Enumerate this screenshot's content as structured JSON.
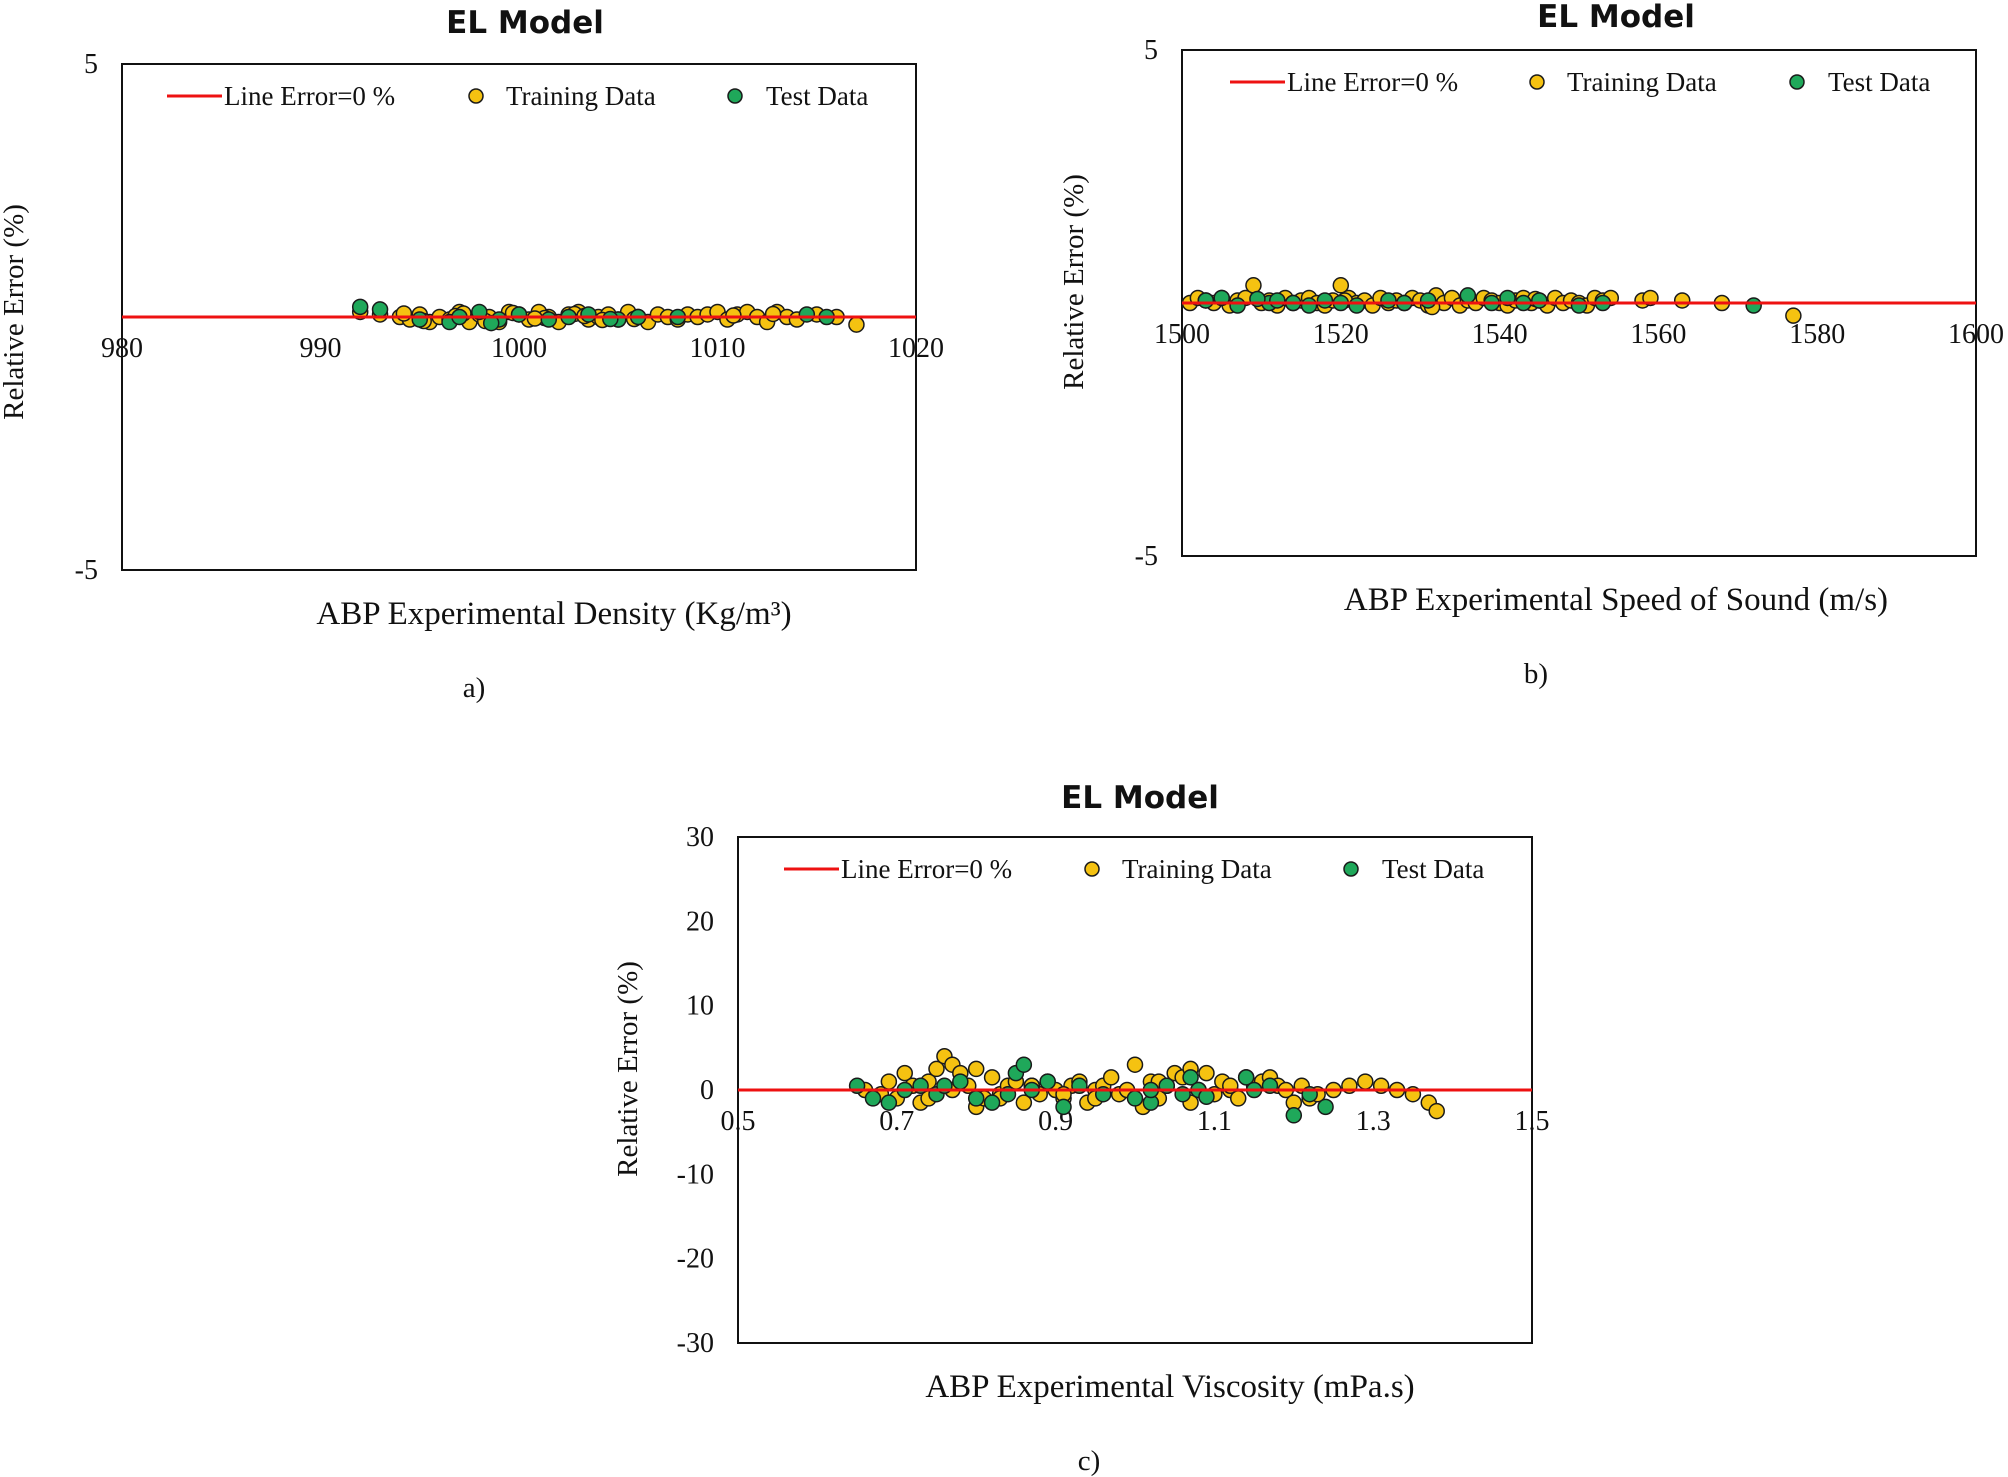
{
  "colors": {
    "zero_line": "#ee1111",
    "training": "#f5c211",
    "test": "#1fa85a",
    "marker_edge": "#1a1a1a"
  },
  "legend": {
    "line": "Line Error=0 %",
    "training": "Training Data",
    "test": "Test Data"
  },
  "chart_data": [
    {
      "type": "scatter",
      "title": "EL Model",
      "caption": "a)",
      "xlabel": "ABP Experimental Density (Kg/m³)",
      "ylabel": "Relative Error (%)",
      "xlim": [
        980,
        1020
      ],
      "ylim": [
        -5,
        5
      ],
      "xticks": [
        980,
        990,
        1000,
        1010,
        1020
      ],
      "yticks": [
        5,
        0,
        -5
      ],
      "ytick_labels": [
        "5",
        "",
        "-5"
      ],
      "series": [
        {
          "name": "Training Data",
          "x": [
            992.0,
            993.0,
            994.0,
            994.5,
            995.0,
            995.5,
            996.0,
            996.5,
            997.0,
            997.5,
            998.0,
            998.5,
            999.0,
            999.5,
            1000.0,
            1000.5,
            1001.0,
            1001.5,
            1002.0,
            1002.5,
            1003.0,
            1003.5,
            1004.0,
            1004.5,
            1005.0,
            1005.5,
            1006.0,
            1006.5,
            1007.0,
            1007.5,
            1008.0,
            1008.5,
            1009.0,
            1009.5,
            1010.0,
            1010.5,
            1011.0,
            1011.5,
            1012.0,
            1012.5,
            1013.0,
            1013.5,
            1014.0,
            1015.0,
            1016.0,
            1017.0,
            996.8,
            998.3,
            999.7,
            1001.3,
            1002.8,
            1004.2,
            995.2,
            997.2,
            1000.8,
            1003.3,
            1005.8,
            1010.8,
            1012.8,
            994.2
          ],
          "y": [
            0.1,
            0.05,
            0.0,
            -0.05,
            0.05,
            -0.1,
            0.0,
            -0.05,
            0.1,
            -0.1,
            0.05,
            0.0,
            -0.1,
            0.1,
            0.05,
            -0.05,
            0.1,
            0.0,
            -0.1,
            0.05,
            0.1,
            -0.05,
            0.0,
            0.05,
            -0.05,
            0.1,
            0.0,
            -0.1,
            0.05,
            0.0,
            -0.05,
            0.05,
            0.0,
            0.05,
            0.1,
            -0.05,
            0.05,
            0.1,
            0.0,
            -0.1,
            0.1,
            0.0,
            -0.05,
            0.05,
            0.0,
            -0.15,
            0.02,
            -0.08,
            0.08,
            -0.02,
            0.06,
            -0.06,
            -0.08,
            0.07,
            -0.03,
            0.02,
            -0.04,
            0.03,
            0.06,
            0.07
          ]
        },
        {
          "name": "Test Data",
          "x": [
            992.0,
            993.0,
            995.0,
            996.5,
            997.0,
            998.0,
            999.0,
            1000.0,
            1001.5,
            1002.5,
            1003.5,
            1005.0,
            1006.0,
            1008.0,
            1014.5,
            1015.5,
            998.6,
            1004.6
          ],
          "y": [
            0.2,
            0.15,
            -0.05,
            -0.1,
            0.0,
            0.1,
            -0.05,
            0.05,
            -0.05,
            0.0,
            0.05,
            -0.05,
            0.0,
            0.0,
            0.05,
            0.0,
            -0.12,
            -0.04
          ]
        }
      ]
    },
    {
      "type": "scatter",
      "title": "EL Model",
      "caption": "b)",
      "xlabel": "ABP Experimental Speed of Sound (m/s)",
      "ylabel": "Relative Error (%)",
      "xlim": [
        1500,
        1600
      ],
      "ylim": [
        -5,
        5
      ],
      "xticks": [
        1500,
        1520,
        1540,
        1560,
        1580,
        1600
      ],
      "yticks": [
        5,
        0,
        -5
      ],
      "ytick_labels": [
        "5",
        "",
        "-5"
      ],
      "series": [
        {
          "name": "Training Data",
          "x": [
            1501,
            1502,
            1503,
            1504,
            1505,
            1506,
            1507,
            1508,
            1509,
            1510,
            1511,
            1512,
            1513,
            1514,
            1515,
            1516,
            1517,
            1518,
            1519,
            1520,
            1521,
            1522,
            1523,
            1524,
            1525,
            1526,
            1527,
            1528,
            1529,
            1530,
            1531,
            1532,
            1533,
            1534,
            1535,
            1536,
            1537,
            1538,
            1539,
            1540,
            1541,
            1542,
            1543,
            1544,
            1545,
            1546,
            1547,
            1548,
            1549,
            1550,
            1551,
            1552,
            1553,
            1554,
            1558,
            1559,
            1563,
            1568,
            1577,
            1520.5,
            1531.5,
            1544.5
          ],
          "y": [
            0.0,
            0.1,
            0.05,
            0.0,
            0.1,
            -0.05,
            0.05,
            0.1,
            0.35,
            0.0,
            0.05,
            -0.05,
            0.1,
            0.0,
            0.05,
            0.1,
            0.0,
            -0.05,
            0.05,
            0.35,
            0.1,
            0.0,
            0.05,
            -0.05,
            0.1,
            0.0,
            0.05,
            0.0,
            0.1,
            0.05,
            -0.05,
            0.15,
            0.0,
            0.1,
            -0.05,
            0.05,
            0.0,
            0.1,
            0.05,
            0.0,
            -0.05,
            0.05,
            0.1,
            0.0,
            0.05,
            -0.05,
            0.1,
            0.0,
            0.05,
            0.0,
            -0.05,
            0.1,
            0.05,
            0.1,
            0.05,
            0.1,
            0.05,
            0.0,
            -0.25,
            0.05,
            -0.08,
            0.08
          ]
        },
        {
          "name": "Test Data",
          "x": [
            1503,
            1505,
            1507,
            1511,
            1512,
            1514,
            1516,
            1518,
            1520,
            1522,
            1526,
            1528,
            1531,
            1536,
            1539,
            1541,
            1543,
            1545,
            1550,
            1553,
            1572,
            1509.5
          ],
          "y": [
            0.05,
            0.1,
            -0.05,
            0.0,
            0.05,
            0.0,
            -0.05,
            0.05,
            0.0,
            -0.05,
            0.05,
            0.0,
            0.05,
            0.15,
            0.0,
            0.1,
            0.0,
            0.05,
            -0.05,
            0.0,
            -0.05,
            0.08
          ]
        }
      ]
    },
    {
      "type": "scatter",
      "title": "EL Model",
      "caption": "c)",
      "xlabel": "ABP Experimental Viscosity (mPa.s)",
      "ylabel": "Relative Error (%)",
      "xlim": [
        0.5,
        1.5
      ],
      "ylim": [
        -30,
        30
      ],
      "xticks": [
        0.5,
        0.7,
        0.9,
        1.1,
        1.3,
        1.5
      ],
      "yticks": [
        30,
        20,
        10,
        0,
        -10,
        -20,
        -30
      ],
      "ytick_labels": [
        "30",
        "20",
        "10",
        "0",
        "-10",
        "-20",
        "-30"
      ],
      "series": [
        {
          "name": "Training Data",
          "x": [
            0.66,
            0.68,
            0.69,
            0.7,
            0.71,
            0.72,
            0.73,
            0.74,
            0.75,
            0.76,
            0.77,
            0.78,
            0.79,
            0.8,
            0.81,
            0.82,
            0.83,
            0.84,
            0.85,
            0.86,
            0.87,
            0.88,
            0.89,
            0.9,
            0.91,
            0.92,
            0.93,
            0.94,
            0.95,
            0.96,
            0.97,
            0.98,
            0.99,
            1.0,
            1.01,
            1.02,
            1.03,
            1.04,
            1.05,
            1.06,
            1.07,
            1.08,
            1.09,
            1.1,
            1.11,
            1.12,
            1.13,
            1.14,
            1.15,
            1.16,
            1.17,
            1.18,
            1.19,
            1.2,
            1.21,
            1.22,
            1.23,
            1.25,
            1.27,
            1.29,
            1.31,
            1.33,
            1.35,
            1.37,
            1.38,
            0.74,
            0.77,
            0.8,
            0.83,
            0.87,
            0.91,
            0.95,
            1.03,
            1.07,
            1.12
          ],
          "y": [
            0.0,
            -0.5,
            1.0,
            -1.0,
            2.0,
            0.5,
            -1.5,
            1.0,
            2.5,
            4.0,
            3.0,
            2.0,
            0.5,
            -2.0,
            -1.0,
            1.5,
            -0.5,
            0.5,
            1.0,
            -1.5,
            0.5,
            -0.5,
            1.0,
            0.0,
            -1.0,
            0.5,
            1.0,
            -1.5,
            0.0,
            0.5,
            1.5,
            -0.5,
            0.0,
            3.0,
            -2.0,
            1.0,
            -1.0,
            0.5,
            2.0,
            1.5,
            2.5,
            0.0,
            2.0,
            -0.5,
            1.0,
            0.0,
            -1.0,
            1.5,
            0.5,
            1.0,
            1.5,
            0.5,
            0.0,
            -1.5,
            0.5,
            -1.0,
            -0.5,
            0.0,
            0.5,
            1.0,
            0.5,
            0.0,
            -0.5,
            -1.5,
            -2.5,
            -1.0,
            0.0,
            2.5,
            -1.0,
            0.5,
            -0.5,
            -1.0,
            1.0,
            -1.5,
            0.5
          ]
        },
        {
          "name": "Test Data",
          "x": [
            0.65,
            0.67,
            0.69,
            0.71,
            0.73,
            0.75,
            0.76,
            0.78,
            0.8,
            0.82,
            0.84,
            0.85,
            0.86,
            0.87,
            0.89,
            0.91,
            0.93,
            0.96,
            1.0,
            1.02,
            1.04,
            1.06,
            1.07,
            1.08,
            1.14,
            1.15,
            1.17,
            1.2,
            1.22,
            1.24,
            1.02,
            1.09
          ],
          "y": [
            0.5,
            -1.0,
            -1.5,
            0.0,
            0.5,
            -0.5,
            0.5,
            1.0,
            -1.0,
            -1.5,
            -0.5,
            2.0,
            3.0,
            0.0,
            1.0,
            -2.0,
            0.5,
            -0.5,
            -1.0,
            -1.5,
            0.5,
            -0.5,
            1.5,
            0.0,
            1.5,
            0.0,
            0.5,
            -3.0,
            -0.5,
            -2.0,
            0.0,
            -0.8
          ]
        }
      ]
    }
  ]
}
